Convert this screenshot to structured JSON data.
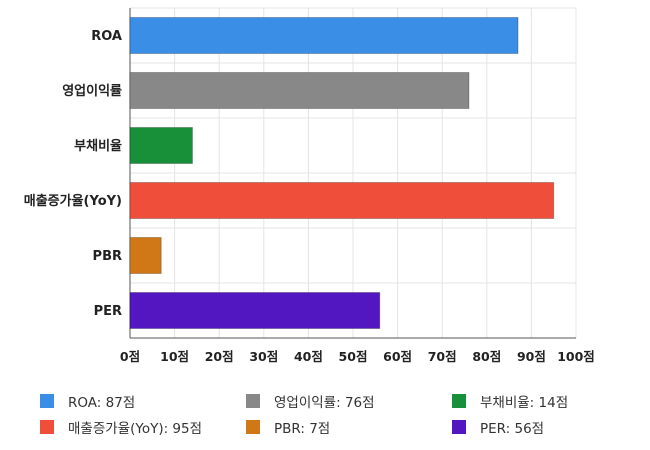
{
  "chart_data": {
    "type": "bar",
    "orientation": "horizontal",
    "categories": [
      "ROA",
      "영업이익률",
      "부채비율",
      "매출증가율(YoY)",
      "PBR",
      "PER"
    ],
    "values": [
      87,
      76,
      14,
      95,
      7,
      56
    ],
    "colors": [
      "#3b8ee6",
      "#888888",
      "#18903a",
      "#ee4e3a",
      "#d07818",
      "#5217c0"
    ],
    "xlim": [
      0,
      100
    ],
    "x_ticks": [
      0,
      10,
      20,
      30,
      40,
      50,
      60,
      70,
      80,
      90,
      100
    ],
    "tick_suffix": "점",
    "grid": true,
    "legend_position": "bottom",
    "legend": [
      {
        "label": "ROA: 87점",
        "color": "#3b8ee6"
      },
      {
        "label": "영업이익률: 76점",
        "color": "#888888"
      },
      {
        "label": "부채비율: 14점",
        "color": "#18903a"
      },
      {
        "label": "매출증가율(YoY): 95점",
        "color": "#ee4e3a"
      },
      {
        "label": "PBR: 7점",
        "color": "#d07818"
      },
      {
        "label": "PER: 56점",
        "color": "#5217c0"
      }
    ]
  }
}
